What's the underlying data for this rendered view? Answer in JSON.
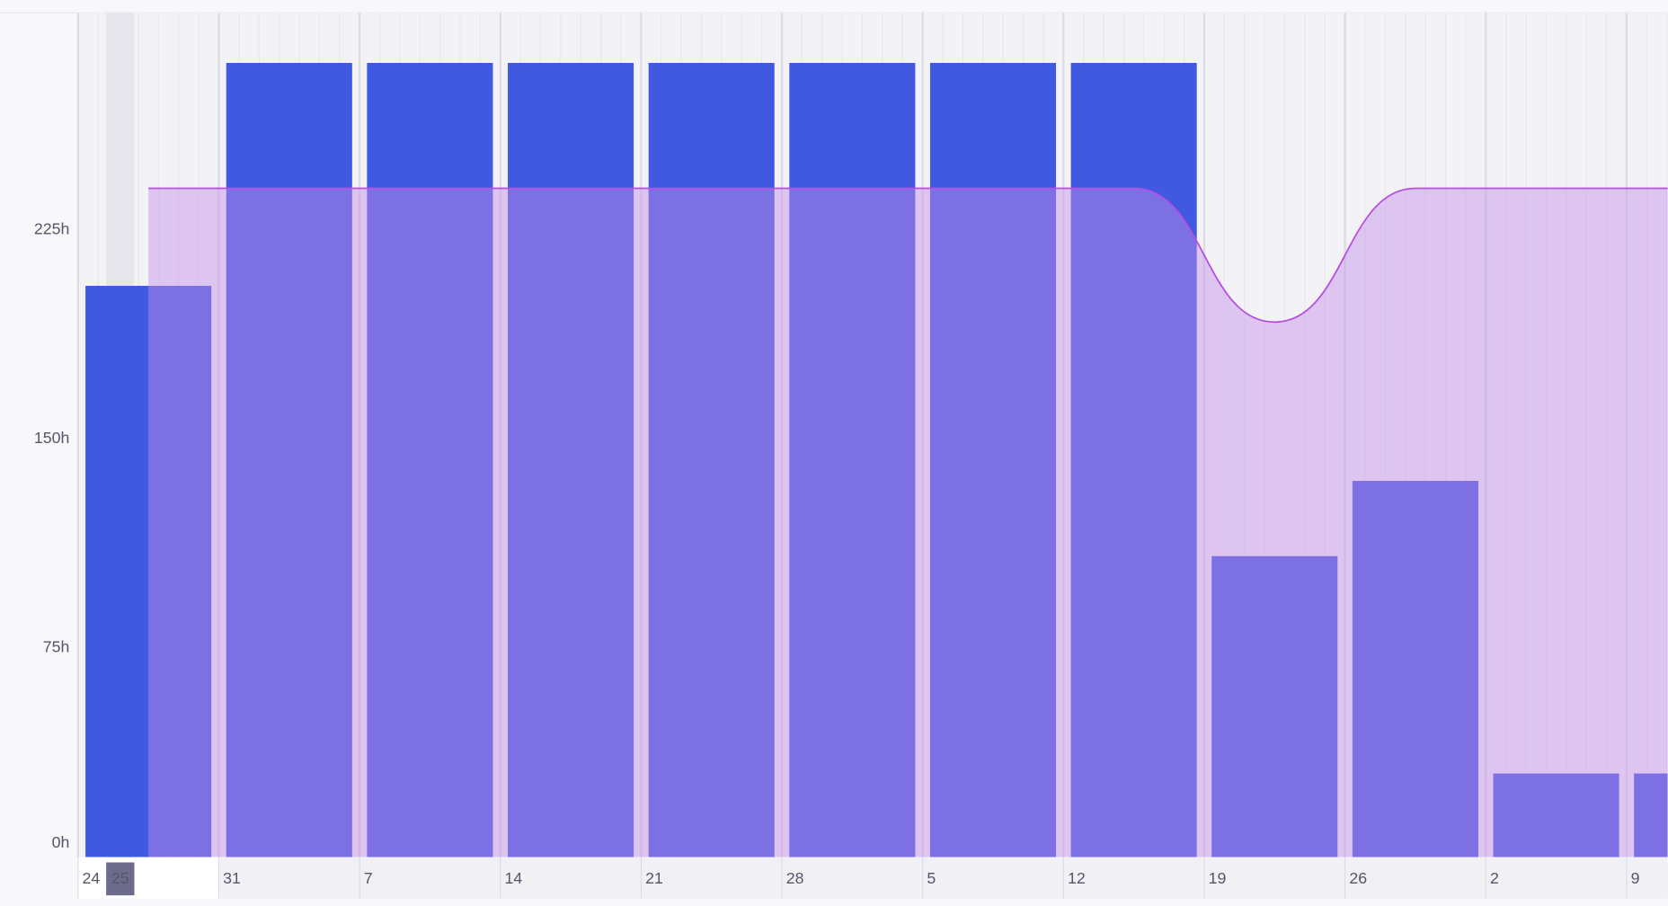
{
  "chart_data": {
    "type": "bar",
    "categories": [
      "24",
      "31",
      "7",
      "14",
      "21",
      "28",
      "5",
      "12",
      "19",
      "26",
      "2",
      "9"
    ],
    "today_label": "25",
    "series": [
      {
        "color": "#4158e0",
        "values": [
          205,
          285,
          285,
          285,
          285,
          285,
          285,
          285,
          108,
          135,
          30,
          30
        ]
      }
    ],
    "capacity": {
      "type": "area",
      "color": "#b54fe0",
      "fill": "#c58ee8",
      "values": [
        240,
        240,
        240,
        240,
        240,
        240,
        240,
        240,
        192,
        240,
        240,
        240
      ]
    },
    "ylim": [
      0,
      303
    ],
    "yticks": [
      {
        "value": 0,
        "label": "0h"
      },
      {
        "value": 75,
        "label": "75h"
      },
      {
        "value": 150,
        "label": "150h"
      },
      {
        "value": 225,
        "label": "225h"
      }
    ],
    "grid": true
  }
}
